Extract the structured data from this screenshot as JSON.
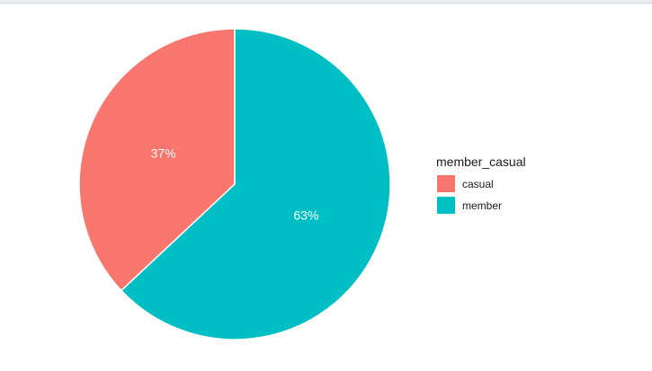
{
  "chart_data": {
    "type": "pie",
    "legend_title": "member_casual",
    "legend_position": "right",
    "slices": [
      {
        "name": "casual",
        "value": 37,
        "label": "37%",
        "color": "#F8766D"
      },
      {
        "name": "member",
        "value": 63,
        "label": "63%",
        "color": "#00BFC4"
      }
    ]
  }
}
